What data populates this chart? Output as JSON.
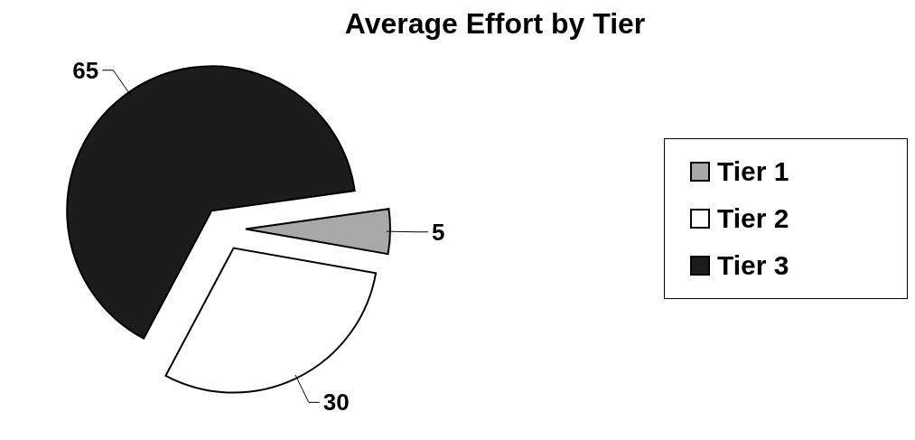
{
  "chart_data": {
    "type": "pie",
    "title": "Average Effort by Tier",
    "categories": [
      "Tier 1",
      "Tier 2",
      "Tier 3"
    ],
    "values": [
      5,
      30,
      65
    ],
    "colors": [
      "#a8a8a8",
      "#ffffff",
      "#1c1c1c"
    ],
    "data_labels": true,
    "legend": "right"
  }
}
